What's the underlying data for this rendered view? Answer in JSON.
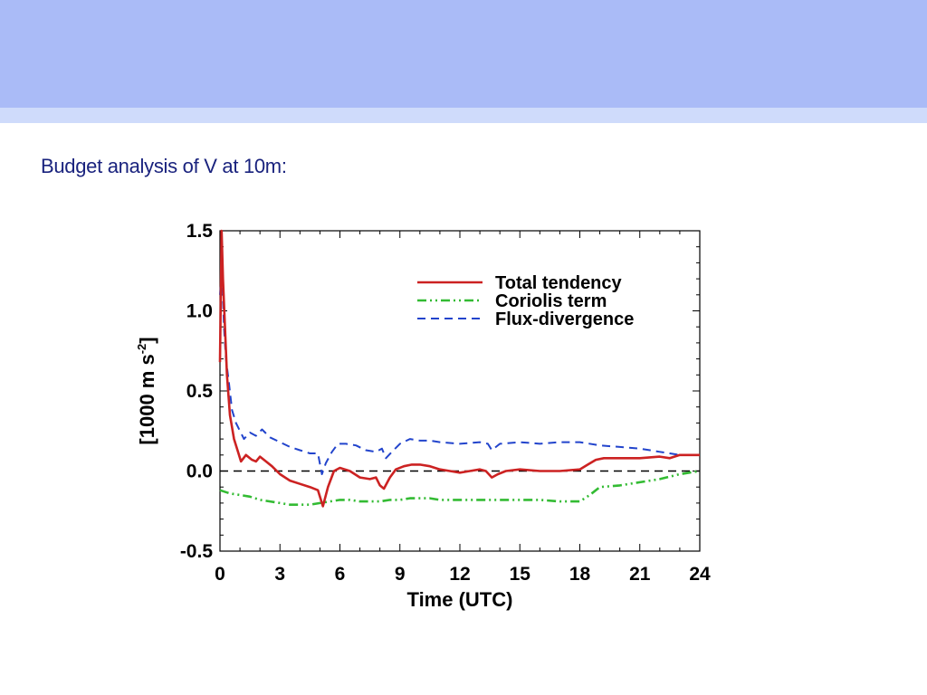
{
  "slide": {
    "title": "Budget analysis of V at 10m:"
  },
  "colors": {
    "header_band": "#aabbf7",
    "header_strip": "#cfdbfb",
    "title_text": "#1a237e",
    "total_tendency": "#cc2222",
    "coriolis": "#33bb33",
    "flux_divergence": "#2244cc",
    "zero_line": "#000000"
  },
  "chart_data": {
    "type": "line",
    "title": "",
    "xlabel": "Time (UTC)",
    "ylabel_main": "[1000 m s",
    "ylabel_sup": "-2",
    "ylabel_end": "]",
    "xlim": [
      0,
      24
    ],
    "ylim": [
      -0.5,
      1.5
    ],
    "xticks": [
      0,
      3,
      6,
      9,
      12,
      15,
      18,
      21,
      24
    ],
    "xtick_labels": [
      "0",
      "3",
      "6",
      "9",
      "12",
      "15",
      "18",
      "21",
      "24"
    ],
    "yticks": [
      -0.5,
      0.0,
      0.5,
      1.0,
      1.5
    ],
    "ytick_labels": [
      "-0.5",
      "0.0",
      "0.5",
      "1.0",
      "1.5"
    ],
    "grid": false,
    "zero_line": true,
    "legend_position": "top-right",
    "series": [
      {
        "name": "Total tendency",
        "style": "solid",
        "points": [
          [
            0,
            0.68
          ],
          [
            0.08,
            1.5
          ],
          [
            0.15,
            1.2
          ],
          [
            0.25,
            0.9
          ],
          [
            0.35,
            0.6
          ],
          [
            0.5,
            0.35
          ],
          [
            0.7,
            0.2
          ],
          [
            0.9,
            0.12
          ],
          [
            1.05,
            0.06
          ],
          [
            1.3,
            0.1
          ],
          [
            1.6,
            0.07
          ],
          [
            1.8,
            0.06
          ],
          [
            2.0,
            0.09
          ],
          [
            2.3,
            0.06
          ],
          [
            2.6,
            0.03
          ],
          [
            3.0,
            -0.02
          ],
          [
            3.5,
            -0.06
          ],
          [
            4.0,
            -0.08
          ],
          [
            4.5,
            -0.1
          ],
          [
            4.9,
            -0.12
          ],
          [
            5.15,
            -0.22
          ],
          [
            5.4,
            -0.1
          ],
          [
            5.7,
            0.0
          ],
          [
            6.0,
            0.02
          ],
          [
            6.5,
            0.0
          ],
          [
            7.0,
            -0.04
          ],
          [
            7.5,
            -0.05
          ],
          [
            7.8,
            -0.04
          ],
          [
            8.0,
            -0.09
          ],
          [
            8.2,
            -0.11
          ],
          [
            8.5,
            -0.04
          ],
          [
            8.8,
            0.01
          ],
          [
            9.2,
            0.03
          ],
          [
            9.6,
            0.04
          ],
          [
            10.0,
            0.04
          ],
          [
            10.5,
            0.03
          ],
          [
            11.0,
            0.01
          ],
          [
            11.5,
            0.0
          ],
          [
            12.0,
            -0.01
          ],
          [
            12.5,
            0.0
          ],
          [
            13.0,
            0.01
          ],
          [
            13.3,
            0.0
          ],
          [
            13.6,
            -0.04
          ],
          [
            13.9,
            -0.02
          ],
          [
            14.3,
            0.0
          ],
          [
            15.0,
            0.01
          ],
          [
            16.0,
            0.0
          ],
          [
            17.0,
            0.0
          ],
          [
            18.0,
            0.01
          ],
          [
            18.4,
            0.04
          ],
          [
            18.8,
            0.07
          ],
          [
            19.2,
            0.08
          ],
          [
            20.0,
            0.08
          ],
          [
            21.0,
            0.08
          ],
          [
            22.0,
            0.09
          ],
          [
            22.5,
            0.08
          ],
          [
            23.0,
            0.1
          ],
          [
            24.0,
            0.1
          ]
        ]
      },
      {
        "name": "Coriolis term",
        "style": "dash-dot-dot",
        "points": [
          [
            0,
            -0.12
          ],
          [
            0.5,
            -0.14
          ],
          [
            1.0,
            -0.15
          ],
          [
            1.5,
            -0.16
          ],
          [
            2.0,
            -0.18
          ],
          [
            2.5,
            -0.19
          ],
          [
            3.0,
            -0.2
          ],
          [
            3.5,
            -0.21
          ],
          [
            4.0,
            -0.21
          ],
          [
            4.5,
            -0.21
          ],
          [
            5.0,
            -0.2
          ],
          [
            5.5,
            -0.19
          ],
          [
            6.0,
            -0.18
          ],
          [
            6.5,
            -0.18
          ],
          [
            7.0,
            -0.19
          ],
          [
            7.5,
            -0.19
          ],
          [
            8.0,
            -0.19
          ],
          [
            8.5,
            -0.18
          ],
          [
            9.0,
            -0.18
          ],
          [
            9.5,
            -0.17
          ],
          [
            10.0,
            -0.17
          ],
          [
            10.5,
            -0.17
          ],
          [
            11.0,
            -0.18
          ],
          [
            12.0,
            -0.18
          ],
          [
            13.0,
            -0.18
          ],
          [
            14.0,
            -0.18
          ],
          [
            15.0,
            -0.18
          ],
          [
            16.0,
            -0.18
          ],
          [
            17.0,
            -0.19
          ],
          [
            18.0,
            -0.19
          ],
          [
            18.5,
            -0.15
          ],
          [
            19.0,
            -0.1
          ],
          [
            20.0,
            -0.09
          ],
          [
            21.0,
            -0.07
          ],
          [
            22.0,
            -0.05
          ],
          [
            23.0,
            -0.02
          ],
          [
            24.0,
            0.0
          ]
        ]
      },
      {
        "name": "Flux-divergence",
        "style": "dashed",
        "points": [
          [
            0,
            1.1
          ],
          [
            0.1,
            1.25
          ],
          [
            0.2,
            0.9
          ],
          [
            0.3,
            0.7
          ],
          [
            0.45,
            0.55
          ],
          [
            0.6,
            0.38
          ],
          [
            0.8,
            0.3
          ],
          [
            1.0,
            0.25
          ],
          [
            1.2,
            0.2
          ],
          [
            1.5,
            0.24
          ],
          [
            1.8,
            0.22
          ],
          [
            2.1,
            0.26
          ],
          [
            2.5,
            0.21
          ],
          [
            3.0,
            0.18
          ],
          [
            3.5,
            0.15
          ],
          [
            4.0,
            0.13
          ],
          [
            4.5,
            0.11
          ],
          [
            4.9,
            0.11
          ],
          [
            5.1,
            -0.02
          ],
          [
            5.3,
            0.05
          ],
          [
            5.6,
            0.12
          ],
          [
            5.9,
            0.17
          ],
          [
            6.3,
            0.17
          ],
          [
            6.8,
            0.16
          ],
          [
            7.3,
            0.13
          ],
          [
            7.8,
            0.12
          ],
          [
            8.1,
            0.14
          ],
          [
            8.3,
            0.08
          ],
          [
            8.6,
            0.12
          ],
          [
            9.0,
            0.17
          ],
          [
            9.5,
            0.2
          ],
          [
            10.0,
            0.19
          ],
          [
            10.5,
            0.19
          ],
          [
            11.0,
            0.18
          ],
          [
            12.0,
            0.17
          ],
          [
            13.0,
            0.18
          ],
          [
            13.4,
            0.17
          ],
          [
            13.6,
            0.13
          ],
          [
            14.0,
            0.17
          ],
          [
            15.0,
            0.18
          ],
          [
            16.0,
            0.17
          ],
          [
            17.0,
            0.18
          ],
          [
            18.0,
            0.18
          ],
          [
            19.0,
            0.16
          ],
          [
            20.0,
            0.15
          ],
          [
            21.0,
            0.14
          ],
          [
            22.0,
            0.12
          ],
          [
            22.5,
            0.11
          ],
          [
            23.0,
            0.1
          ],
          [
            24.0,
            0.1
          ]
        ]
      }
    ]
  }
}
